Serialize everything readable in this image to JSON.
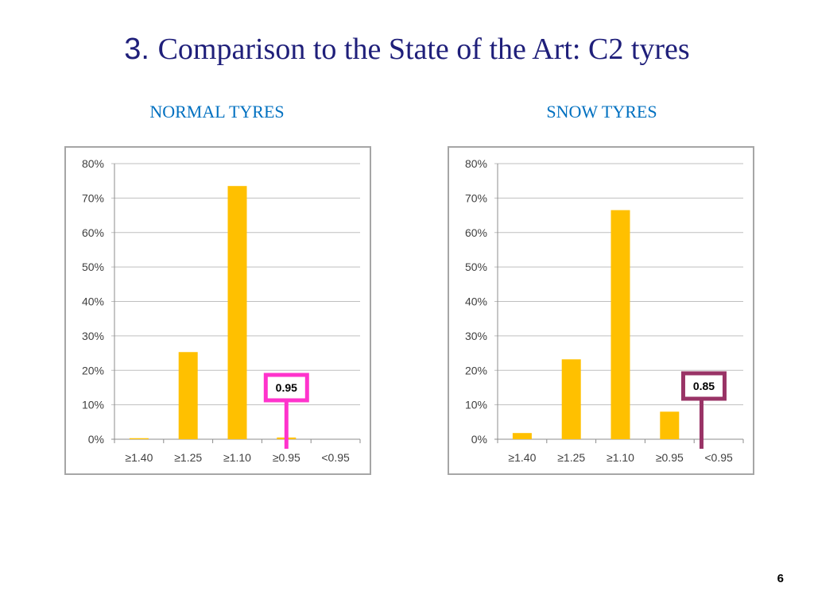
{
  "slide": {
    "title_num": "3.",
    "title_text": "Comparison to the State of the Art: C2 tyres",
    "page_number": "6"
  },
  "chart_data": [
    {
      "type": "bar",
      "title": "NORMAL TYRES",
      "categories": [
        "≥1.40",
        "≥1.25",
        "≥1.10",
        "≥0.95",
        "<0.95"
      ],
      "values": [
        0.3,
        25.3,
        73.5,
        0.5,
        0
      ],
      "y_ticks": [
        "0%",
        "10%",
        "20%",
        "30%",
        "40%",
        "50%",
        "60%",
        "70%",
        "80%"
      ],
      "ylim": [
        0,
        80
      ],
      "grid": true,
      "bar_color": "#ffc000",
      "marker": {
        "label": "0.95",
        "position_category_index": 3.5,
        "color": "#ff33cc"
      }
    },
    {
      "type": "bar",
      "title": "SNOW TYRES",
      "categories": [
        "≥1.40",
        "≥1.25",
        "≥1.10",
        "≥0.95",
        "<0.95"
      ],
      "values": [
        1.8,
        23.2,
        66.5,
        8.0,
        0
      ],
      "y_ticks": [
        "0%",
        "10%",
        "20%",
        "30%",
        "40%",
        "50%",
        "60%",
        "70%",
        "80%"
      ],
      "ylim": [
        0,
        80
      ],
      "grid": true,
      "bar_color": "#ffc000",
      "marker": {
        "label": "0.85",
        "position_category_index": 4.15,
        "color": "#993366"
      }
    }
  ]
}
